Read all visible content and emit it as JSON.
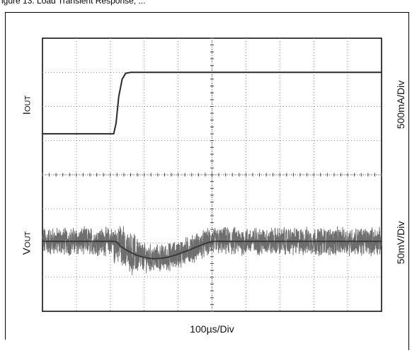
{
  "figure": {
    "caption": "igure 13. Load Transient Response, ..."
  },
  "chart_data": {
    "type": "line",
    "title": "",
    "xlabel": "100µs/Div",
    "grid": true,
    "x_divisions": 10,
    "y_divisions": 8,
    "channels": [
      {
        "name": "IOUT",
        "label_main": "I",
        "label_sub": "OUT",
        "scale": "500mA/Div",
        "color": "#2a2a2a",
        "points_div": [
          [
            0,
            5.2
          ],
          [
            2.1,
            5.2
          ],
          [
            2.17,
            5.5
          ],
          [
            2.25,
            6.3
          ],
          [
            2.35,
            6.8
          ],
          [
            2.45,
            6.97
          ],
          [
            2.6,
            7.0
          ],
          [
            10,
            7.0
          ]
        ]
      },
      {
        "name": "VOUT",
        "label_main": "V",
        "label_sub": "OUT",
        "scale": "50mV/Div",
        "color": "#555555",
        "baseline_div": 2.05,
        "step_time_div": 2.1,
        "undershoot_div": 0.7,
        "recovery_end_div": 5.0,
        "noise_amplitude_div": 0.35
      }
    ]
  }
}
